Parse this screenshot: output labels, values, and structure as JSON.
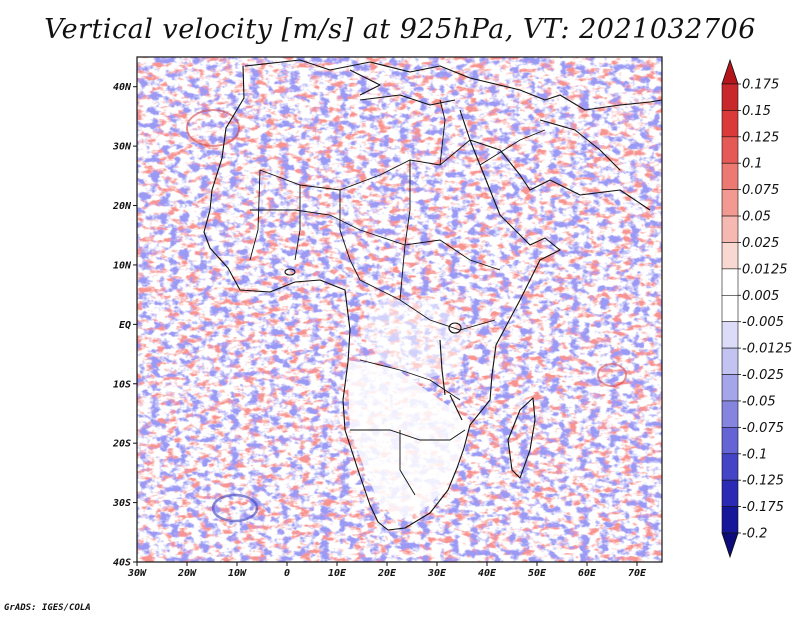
{
  "title": "Vertical velocity [m/s] at 925hPa, VT: 2021032706",
  "credit": "GrADS: IGES/COLA",
  "map": {
    "lon_range": [
      -30,
      75
    ],
    "lat_range": [
      -40,
      45
    ],
    "lat_ticks": [
      {
        "value": 40,
        "label": "40N"
      },
      {
        "value": 30,
        "label": "30N"
      },
      {
        "value": 20,
        "label": "20N"
      },
      {
        "value": 10,
        "label": "10N"
      },
      {
        "value": 0,
        "label": "EQ"
      },
      {
        "value": -10,
        "label": "10S"
      },
      {
        "value": -20,
        "label": "20S"
      },
      {
        "value": -30,
        "label": "30S"
      },
      {
        "value": -40,
        "label": "40S"
      }
    ],
    "lon_ticks": [
      {
        "value": -30,
        "label": "30W"
      },
      {
        "value": -20,
        "label": "20W"
      },
      {
        "value": -10,
        "label": "10W"
      },
      {
        "value": 0,
        "label": "0"
      },
      {
        "value": 10,
        "label": "10E"
      },
      {
        "value": 20,
        "label": "20E"
      },
      {
        "value": 30,
        "label": "30E"
      },
      {
        "value": 40,
        "label": "40E"
      },
      {
        "value": 50,
        "label": "50E"
      },
      {
        "value": 60,
        "label": "60E"
      },
      {
        "value": 70,
        "label": "70E"
      }
    ]
  },
  "colorbar": {
    "levels": [
      "0.175",
      "0.15",
      "0.125",
      "0.1",
      "0.075",
      "0.05",
      "0.025",
      "0.0125",
      "0.005",
      "-0.005",
      "-0.0125",
      "-0.025",
      "-0.05",
      "-0.075",
      "-0.1",
      "-0.125",
      "-0.175",
      "-0.2"
    ],
    "colors": [
      "#b4161b",
      "#c8272b",
      "#da3a3a",
      "#e55a56",
      "#ec7a73",
      "#f29a92",
      "#f6b9b1",
      "#fad8d2",
      "#ffffff",
      "#ffffff",
      "#dcdcf8",
      "#c3c3f2",
      "#a5a5ea",
      "#8585e0",
      "#6464d4",
      "#4444c6",
      "#2a2ab4",
      "#16169a",
      "#0c0c7a"
    ]
  }
}
